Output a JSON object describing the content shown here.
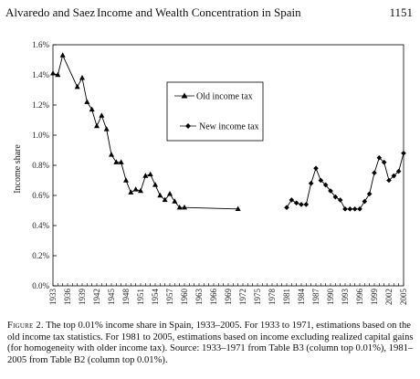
{
  "header": {
    "authors": "Alvaredo and Saez",
    "title": "Income and Wealth Concentration in Spain",
    "page_number": "1151"
  },
  "caption": {
    "label": "Figure 2.",
    "text": "The top 0.01% income share in Spain, 1933–2005. For 1933 to 1971, estimations based on the old income tax statistics. For 1981 to 2005, estimations based on income excluding realized capital gains (for homogeneity with older income tax). Source: 1933–1971 from Table B3 (column top 0.01%), 1981–2005 from Table B2 (column top 0.01%)."
  },
  "chart_data": {
    "type": "line",
    "title": "",
    "xlabel": "",
    "ylabel": "Income share",
    "xlim": [
      1933,
      2005
    ],
    "ylim": [
      0.0,
      1.6
    ],
    "y_ticks": [
      0.0,
      0.2,
      0.4,
      0.6,
      0.8,
      1.0,
      1.2,
      1.4,
      1.6
    ],
    "y_tick_labels": [
      "0.0%",
      "0.2%",
      "0.4%",
      "0.6%",
      "0.8%",
      "1.0%",
      "1.2%",
      "1.4%",
      "1.6%"
    ],
    "x_tick_labels": [
      "1933",
      "1936",
      "1939",
      "1942",
      "1945",
      "1948",
      "1951",
      "1954",
      "1957",
      "1960",
      "1963",
      "1966",
      "1969",
      "1972",
      "1975",
      "1978",
      "1981",
      "1984",
      "1987",
      "1990",
      "1993",
      "1996",
      "1999",
      "2002",
      "2005"
    ],
    "legend": {
      "placement": "top-center",
      "boxed": true
    },
    "series": [
      {
        "name": "Old income tax",
        "marker": "triangle",
        "segments": [
          {
            "x": [
              1933,
              1934,
              1935,
              1938,
              1939,
              1940,
              1941,
              1942,
              1943,
              1944,
              1945,
              1946,
              1947,
              1948,
              1949,
              1950,
              1951,
              1952,
              1953,
              1954,
              1955,
              1956,
              1957,
              1958,
              1959,
              1960
            ],
            "y": [
              1.41,
              1.4,
              1.53,
              1.32,
              1.38,
              1.22,
              1.17,
              1.06,
              1.13,
              1.04,
              0.87,
              0.82,
              0.82,
              0.7,
              0.62,
              0.64,
              0.63,
              0.73,
              0.74,
              0.67,
              0.6,
              0.57,
              0.61,
              0.56,
              0.52,
              0.52
            ]
          },
          {
            "x": [
              1960,
              1971
            ],
            "y": [
              0.52,
              0.51
            ]
          }
        ]
      },
      {
        "name": "New income tax",
        "marker": "diamond",
        "segments": [
          {
            "x": [
              1981,
              1982,
              1983,
              1984,
              1985,
              1986,
              1987,
              1988,
              1989,
              1990,
              1991,
              1992,
              1993,
              1994,
              1995,
              1996,
              1997,
              1998,
              1999,
              2000,
              2001,
              2002,
              2003,
              2004,
              2005
            ],
            "y": [
              0.52,
              0.57,
              0.55,
              0.54,
              0.54,
              0.68,
              0.78,
              0.7,
              0.67,
              0.63,
              0.59,
              0.57,
              0.51,
              0.51,
              0.51,
              0.51,
              0.56,
              0.61,
              0.75,
              0.85,
              0.82,
              0.7,
              0.73,
              0.76,
              0.88
            ]
          }
        ]
      }
    ]
  }
}
